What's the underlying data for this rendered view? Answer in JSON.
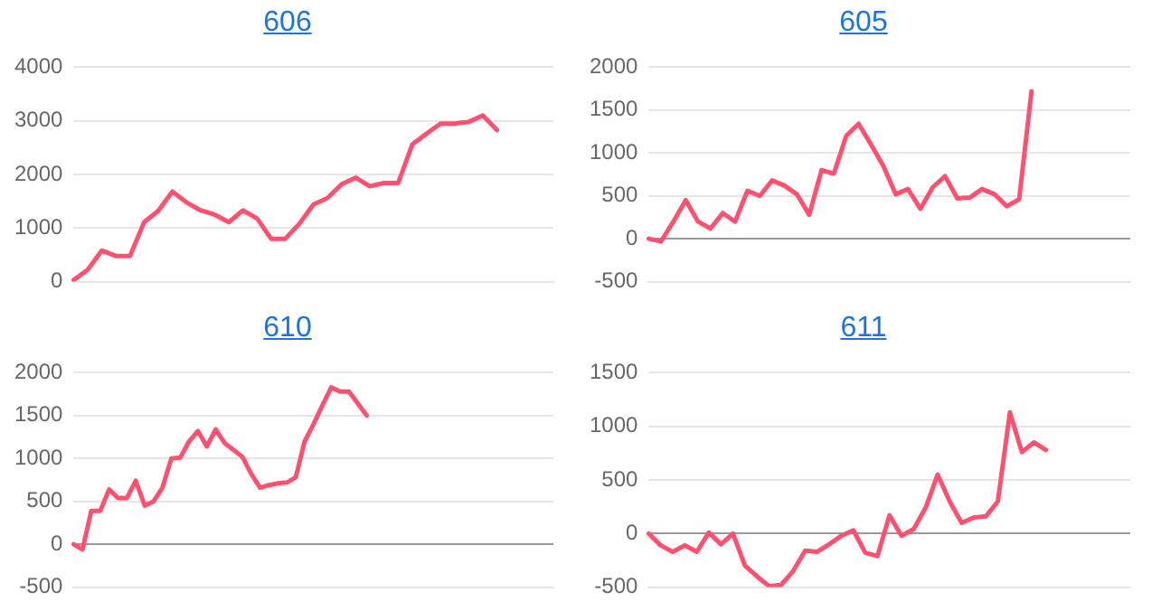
{
  "chart_data": [
    {
      "type": "line",
      "title": "606",
      "categories": [
        null,
        null,
        null,
        null,
        null,
        null,
        null,
        null,
        null,
        null,
        null,
        null,
        null,
        null,
        null,
        null,
        null,
        null,
        null,
        null,
        null,
        null,
        null,
        null,
        null,
        null,
        null,
        null,
        null,
        null,
        null,
        null,
        null,
        null,
        null
      ],
      "series": [
        {
          "color": "#ff5070",
          "values": [
            30,
            220,
            580,
            480,
            480,
            1110,
            1320,
            1680,
            1480,
            1330,
            1250,
            1110,
            1330,
            1180,
            800,
            800,
            1080,
            1440,
            1560,
            1820,
            1940,
            1780,
            1840,
            1840,
            2560,
            2760,
            2950,
            2950,
            2980,
            3100,
            2830,
            null,
            null,
            null,
            null
          ]
        }
      ],
      "ylim": [
        0,
        4000
      ],
      "yticks": [
        0,
        1000,
        2000,
        3000,
        4000
      ],
      "grid": "y",
      "legend": false,
      "marker": "none",
      "line_style": "solid",
      "tick_labels": "y"
    },
    {
      "type": "line",
      "title": "605",
      "categories": [
        null,
        null,
        null,
        null,
        null,
        null,
        null,
        null,
        null,
        null,
        null,
        null,
        null,
        null,
        null,
        null,
        null,
        null,
        null,
        null,
        null,
        null,
        null,
        null,
        null,
        null,
        null,
        null,
        null,
        null,
        null,
        null,
        null,
        null,
        null,
        null,
        null,
        null,
        null,
        null
      ],
      "series": [
        {
          "color": "#ff5070",
          "values": [
            0,
            -30,
            200,
            450,
            200,
            120,
            300,
            200,
            560,
            500,
            680,
            620,
            520,
            280,
            800,
            760,
            1200,
            1340,
            1100,
            850,
            520,
            580,
            350,
            600,
            730,
            470,
            480,
            580,
            520,
            380,
            460,
            1720,
            null,
            null,
            null,
            null,
            null,
            null,
            null,
            null
          ]
        }
      ],
      "ylim": [
        -500,
        2000
      ],
      "yticks": [
        -500,
        0,
        500,
        1000,
        1500,
        2000
      ],
      "grid": "y",
      "legend": false,
      "marker": "none",
      "line_style": "solid",
      "tick_labels": "y"
    },
    {
      "type": "line",
      "title": "610",
      "categories": [
        null,
        null,
        null,
        null,
        null,
        null,
        null,
        null,
        null,
        null,
        null,
        null,
        null,
        null,
        null,
        null,
        null,
        null,
        null,
        null,
        null,
        null,
        null,
        null,
        null,
        null,
        null,
        null,
        null,
        null,
        null,
        null,
        null,
        null,
        null,
        null,
        null,
        null,
        null,
        null,
        null,
        null,
        null,
        null,
        null,
        null,
        null,
        null,
        null,
        null,
        null,
        null,
        null,
        null,
        null
      ],
      "series": [
        {
          "color": "#ff5070",
          "values": [
            0,
            -60,
            390,
            390,
            640,
            540,
            540,
            740,
            450,
            500,
            660,
            1000,
            1010,
            1200,
            1320,
            1140,
            1340,
            1180,
            1100,
            1020,
            820,
            660,
            690,
            710,
            720,
            780,
            1200,
            1400,
            1620,
            1830,
            1780,
            1780,
            1640,
            1500,
            null,
            null,
            null,
            null,
            null,
            null,
            null,
            null,
            null,
            null,
            null,
            null,
            null,
            null,
            null,
            null,
            null,
            null,
            null,
            null,
            null
          ]
        }
      ],
      "ylim": [
        -500,
        2000
      ],
      "yticks": [
        -500,
        0,
        500,
        1000,
        1500,
        2000
      ],
      "grid": "y",
      "legend": false,
      "marker": "none",
      "line_style": "solid",
      "tick_labels": "y"
    },
    {
      "type": "line",
      "title": "611",
      "categories": [
        null,
        null,
        null,
        null,
        null,
        null,
        null,
        null,
        null,
        null,
        null,
        null,
        null,
        null,
        null,
        null,
        null,
        null,
        null,
        null,
        null,
        null,
        null,
        null,
        null,
        null,
        null,
        null,
        null,
        null,
        null,
        null,
        null,
        null,
        null,
        null,
        null,
        null,
        null,
        null,
        null
      ],
      "series": [
        {
          "color": "#ff5070",
          "values": [
            0,
            -110,
            -170,
            -110,
            -170,
            10,
            -100,
            0,
            -300,
            -400,
            -490,
            -480,
            -350,
            -160,
            -170,
            -100,
            -20,
            30,
            -180,
            -210,
            170,
            -20,
            40,
            240,
            550,
            300,
            100,
            150,
            160,
            300,
            1130,
            760,
            850,
            780,
            null,
            null,
            null,
            null,
            null,
            null,
            null
          ]
        }
      ],
      "ylim": [
        -500,
        1500
      ],
      "yticks": [
        -500,
        0,
        500,
        1000,
        1500
      ],
      "grid": "y",
      "legend": false,
      "marker": "none",
      "line_style": "solid",
      "tick_labels": "y"
    }
  ]
}
